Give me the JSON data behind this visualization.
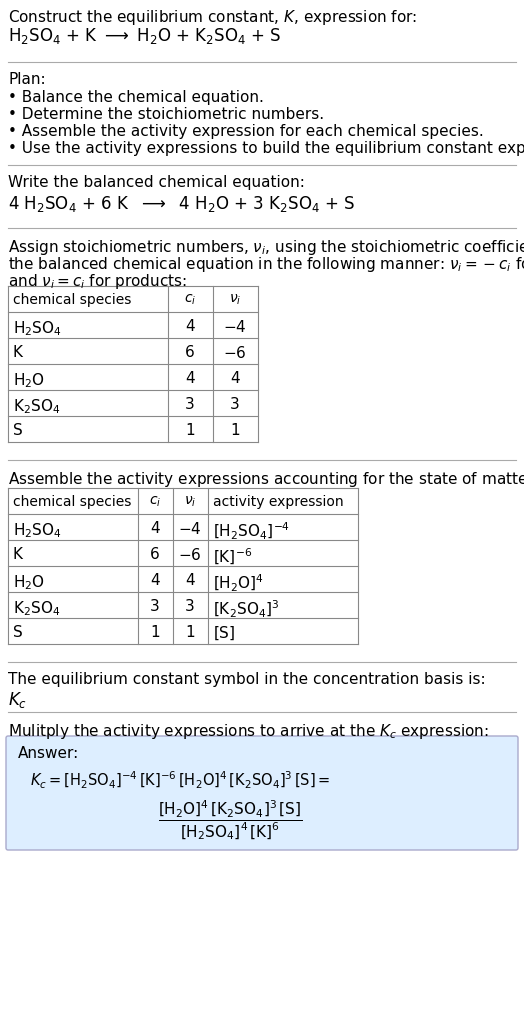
{
  "bg_color": "#ffffff",
  "title_line1": "Construct the equilibrium constant, $K$, expression for:",
  "title_line2": "$\\mathrm{H_2SO_4}$ + K $\\longrightarrow$ $\\mathrm{H_2O}$ + $\\mathrm{K_2SO_4}$ + S",
  "plan_header": "Plan:",
  "plan_items": [
    "\\textbullet  Balance the chemical equation.",
    "\\textbullet  Determine the stoichiometric numbers.",
    "\\textbullet  Assemble the activity expression for each chemical species.",
    "\\textbullet  Use the activity expressions to build the equilibrium constant expression."
  ],
  "balanced_header": "Write the balanced chemical equation:",
  "balanced_eq": "4 $\\mathrm{H_2SO_4}$ + 6 K $\\longrightarrow$ 4 $\\mathrm{H_2O}$ + 3 $\\mathrm{K_2SO_4}$ + S",
  "stoich_header": "Assign stoichiometric numbers, $\\nu_i$, using the stoichiometric coefficients, $c_i$, from the balanced chemical equation in the following manner: $\\nu_i = -c_i$ for reactants and $\\nu_i = c_i$ for products:",
  "table1_cols": [
    "chemical species",
    "$c_i$",
    "$\\nu_i$"
  ],
  "table1_data": [
    [
      "$\\mathrm{H_2SO_4}$",
      "4",
      "$-4$"
    ],
    [
      "K",
      "6",
      "$-6$"
    ],
    [
      "$\\mathrm{H_2O}$",
      "4",
      "4"
    ],
    [
      "$\\mathrm{K_2SO_4}$",
      "3",
      "3"
    ],
    [
      "S",
      "1",
      "1"
    ]
  ],
  "activity_header": "Assemble the activity expressions accounting for the state of matter and $\\nu_i$:",
  "table2_cols": [
    "chemical species",
    "$c_i$",
    "$\\nu_i$",
    "activity expression"
  ],
  "table2_data": [
    [
      "$\\mathrm{H_2SO_4}$",
      "4",
      "$-4$",
      "$[\\mathrm{H_2SO_4}]^{-4}$"
    ],
    [
      "K",
      "6",
      "$-6$",
      "$[\\mathrm{K}]^{-6}$"
    ],
    [
      "$\\mathrm{H_2O}$",
      "4",
      "4",
      "$[\\mathrm{H_2O}]^4$"
    ],
    [
      "$\\mathrm{K_2SO_4}$",
      "3",
      "3",
      "$[\\mathrm{K_2SO_4}]^3$"
    ],
    [
      "S",
      "1",
      "1",
      "$[\\mathrm{S}]$"
    ]
  ],
  "kc_text": "The equilibrium constant symbol in the concentration basis is:",
  "kc_symbol": "$K_c$",
  "multiply_header": "Mulitply the activity expressions to arrive at the $K_c$ expression:",
  "answer_box_color": "#ddeeff",
  "answer_label": "Answer:",
  "answer_line1": "$K_c = [\\mathrm{H_2SO_4}]^{-4}\\,[\\mathrm{K}]^{-6}\\,[\\mathrm{H_2O}]^4\\,[\\mathrm{K_2SO_4}]^3\\,[\\mathrm{S}]$",
  "answer_eq_sign": "$= \\dfrac{[\\mathrm{H_2O}]^4\\,[\\mathrm{K_2SO_4}]^3\\,[\\mathrm{S}]}{[\\mathrm{H_2SO_4}]^4\\,[\\mathrm{K}]^6}$"
}
